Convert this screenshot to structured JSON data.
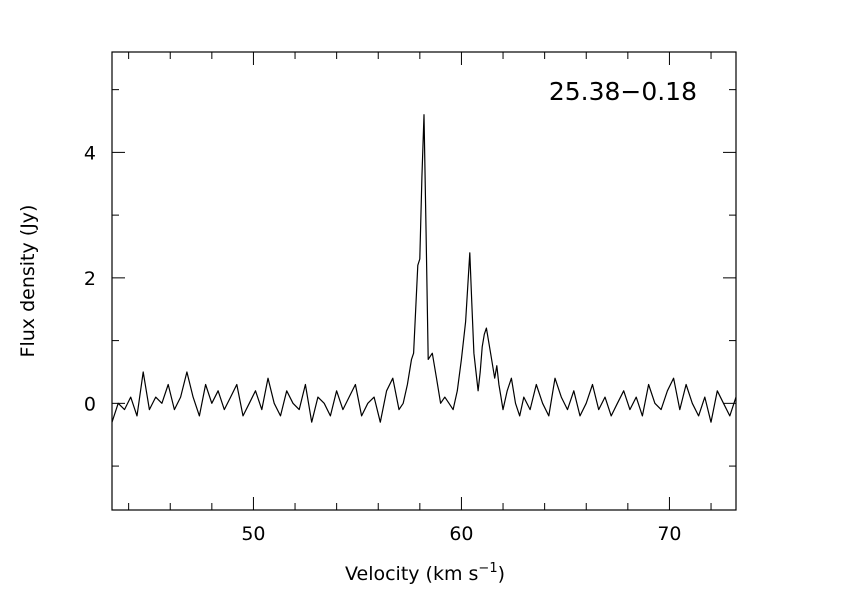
{
  "chart_data": {
    "type": "line",
    "annotation": "25.38−0.18",
    "xlabel": "Velocity (km s",
    "xlabel_sup": "−1",
    "xlabel_close": ")",
    "ylabel": "Flux density (Jy)",
    "xlim": [
      43.2,
      73.2
    ],
    "ylim": [
      -1.7,
      5.6
    ],
    "x_ticks": [
      50,
      60,
      70
    ],
    "x_tick_labels": [
      "50",
      "60",
      "70"
    ],
    "y_ticks": [
      0,
      2,
      4
    ],
    "y_tick_labels": [
      "0",
      "2",
      "4"
    ],
    "x_minor_step": 2,
    "y_minor_step": 1,
    "grid": false,
    "line_color": "#000000",
    "series": [
      {
        "x": [
          43.2,
          43.5,
          43.8,
          44.1,
          44.4,
          44.7,
          45.0,
          45.3,
          45.6,
          45.9,
          46.2,
          46.5,
          46.8,
          47.1,
          47.4,
          47.7,
          48.0,
          48.3,
          48.6,
          48.9,
          49.2,
          49.5,
          49.8,
          50.1,
          50.4,
          50.7,
          51.0,
          51.3,
          51.6,
          51.9,
          52.2,
          52.5,
          52.8,
          53.1,
          53.4,
          53.7,
          54.0,
          54.3,
          54.6,
          54.9,
          55.2,
          55.5,
          55.8,
          56.1,
          56.4,
          56.7,
          57.0,
          57.2,
          57.4,
          57.6,
          57.7,
          57.8,
          57.9,
          58.0,
          58.1,
          58.2,
          58.3,
          58.4,
          58.6,
          58.8,
          59.0,
          59.2,
          59.4,
          59.6,
          59.8,
          60.0,
          60.2,
          60.4,
          60.5,
          60.6,
          60.7,
          60.8,
          60.9,
          61.0,
          61.1,
          61.2,
          61.4,
          61.6,
          61.7,
          61.8,
          61.9,
          62.0,
          62.2,
          62.4,
          62.6,
          62.8,
          63.0,
          63.3,
          63.6,
          63.9,
          64.2,
          64.5,
          64.8,
          65.1,
          65.4,
          65.7,
          66.0,
          66.3,
          66.6,
          66.9,
          67.2,
          67.5,
          67.8,
          68.1,
          68.4,
          68.7,
          69.0,
          69.3,
          69.6,
          69.9,
          70.2,
          70.5,
          70.8,
          71.1,
          71.4,
          71.7,
          72.0,
          72.3,
          72.6,
          72.9,
          73.2
        ],
        "y": [
          -0.3,
          0.0,
          -0.1,
          0.1,
          -0.2,
          0.5,
          -0.1,
          0.1,
          0.0,
          0.3,
          -0.1,
          0.1,
          0.5,
          0.1,
          -0.2,
          0.3,
          0.0,
          0.2,
          -0.1,
          0.1,
          0.3,
          -0.2,
          0.0,
          0.2,
          -0.1,
          0.4,
          0.0,
          -0.2,
          0.2,
          0.0,
          -0.1,
          0.3,
          -0.3,
          0.1,
          0.0,
          -0.2,
          0.2,
          -0.1,
          0.1,
          0.3,
          -0.2,
          0.0,
          0.1,
          -0.3,
          0.2,
          0.4,
          -0.1,
          0.0,
          0.3,
          0.7,
          0.8,
          1.5,
          2.2,
          2.3,
          3.6,
          4.6,
          2.7,
          0.7,
          0.8,
          0.4,
          0.0,
          0.1,
          0.0,
          -0.1,
          0.2,
          0.7,
          1.3,
          2.4,
          1.6,
          0.8,
          0.5,
          0.2,
          0.5,
          0.9,
          1.1,
          1.2,
          0.8,
          0.4,
          0.6,
          0.3,
          0.1,
          -0.1,
          0.2,
          0.4,
          0.0,
          -0.2,
          0.1,
          -0.1,
          0.3,
          0.0,
          -0.2,
          0.4,
          0.1,
          -0.1,
          0.2,
          -0.2,
          0.0,
          0.3,
          -0.1,
          0.1,
          -0.2,
          0.0,
          0.2,
          -0.1,
          0.1,
          -0.2,
          0.3,
          0.0,
          -0.1,
          0.2,
          0.4,
          -0.1,
          0.3,
          0.0,
          -0.2,
          0.1,
          -0.3,
          0.2,
          0.0,
          -0.2,
          0.1
        ]
      }
    ]
  }
}
